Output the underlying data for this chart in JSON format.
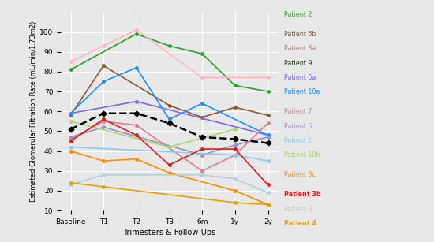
{
  "x_labels": [
    "Baseline",
    "T1",
    "T2",
    "T3",
    "6m",
    "1y",
    "2y"
  ],
  "patient_data": {
    "Patient 2": [
      81,
      null,
      99,
      93,
      89,
      73,
      70
    ],
    "Patient 6b": [
      58,
      83,
      null,
      63,
      57,
      62,
      58
    ],
    "Patient 3a": [
      85,
      93,
      101,
      null,
      77,
      null,
      77
    ],
    "Patient 9": [
      51,
      null,
      null,
      null,
      null,
      null,
      null
    ],
    "Patient 6a": [
      59,
      null,
      65,
      null,
      null,
      null,
      48
    ],
    "Patient 10a": [
      59,
      75,
      82,
      56,
      64,
      null,
      48
    ],
    "Patient 7": [
      46,
      55,
      53,
      null,
      30,
      38,
      54
    ],
    "Patient 5": [
      47,
      52,
      null,
      null,
      38,
      43,
      47
    ],
    "Patient 1": [
      42,
      null,
      null,
      null,
      null,
      38,
      35
    ],
    "Patient 10b": [
      55,
      null,
      null,
      42,
      null,
      51,
      null
    ],
    "Patient 3c": [
      40,
      35,
      36,
      29,
      null,
      20,
      13
    ],
    "Patient 3b": [
      45,
      56,
      48,
      33,
      41,
      41,
      23
    ],
    "Patient 8": [
      23,
      28,
      null,
      null,
      28,
      26,
      19
    ],
    "Patient 4": [
      24,
      22,
      null,
      null,
      null,
      14,
      13
    ]
  },
  "patient_colors": {
    "Patient 2": "#2ca02c",
    "Patient 6b": "#8B5A2B",
    "Patient 3a": "#ffb6c1",
    "Patient 9": "#1c3a1c",
    "Patient 6a": "#7b68ee",
    "Patient 10a": "#1e90ff",
    "Patient 7": "#e07b8a",
    "Patient 5": "#9b8ec4",
    "Patient 1": "#87ceeb",
    "Patient 10b": "#a8d870",
    "Patient 3c": "#ff8c00",
    "Patient 3b": "#e31a1c",
    "Patient 8": "#b0cfe0",
    "Patient 4": "#e8a000"
  },
  "legend_text_colors": {
    "Patient 2": "#2ca02c",
    "Patient 6b": "#8B5A2B",
    "Patient 3a": "#c87080",
    "Patient 9": "#1c3a1c",
    "Patient 6a": "#7b68ee",
    "Patient 10a": "#1e90ff",
    "Patient 7": "#e07b8a",
    "Patient 5": "#9b8ec4",
    "Patient 1": "#87ceeb",
    "Patient 10b": "#a8d870",
    "Patient 3c": "#ff8c00",
    "Patient 3b": "#e31a1c",
    "Patient 8": "#b0cfe0",
    "Patient 4": "#e8a000"
  },
  "legend_bold": [
    "Patient 3b",
    "Patient 4"
  ],
  "legend_blank_after": [
    "Patient 2",
    "Patient 10a",
    "Patient 10b",
    "Patient 3c"
  ],
  "mean_line": [
    51,
    59,
    59,
    54,
    47,
    46,
    44
  ],
  "xlabel": "Trimesters & Follow-Ups",
  "ylabel": "Estimated Glomerular Filtration Rate (mL/min/1.73m2)",
  "ylim": [
    10,
    110
  ],
  "yticks": [
    10,
    20,
    30,
    40,
    50,
    60,
    70,
    80,
    90,
    100
  ],
  "bg_color": "#e8e8e8",
  "grid_color": "white",
  "legend_order": [
    "Patient 2",
    "Patient 6b",
    "Patient 3a",
    "Patient 9",
    "Patient 6a",
    "Patient 10a",
    "Patient 7",
    "Patient 5",
    "Patient 1",
    "Patient 10b",
    "Patient 3c",
    "Patient 3b",
    "Patient 8",
    "Patient 4"
  ]
}
